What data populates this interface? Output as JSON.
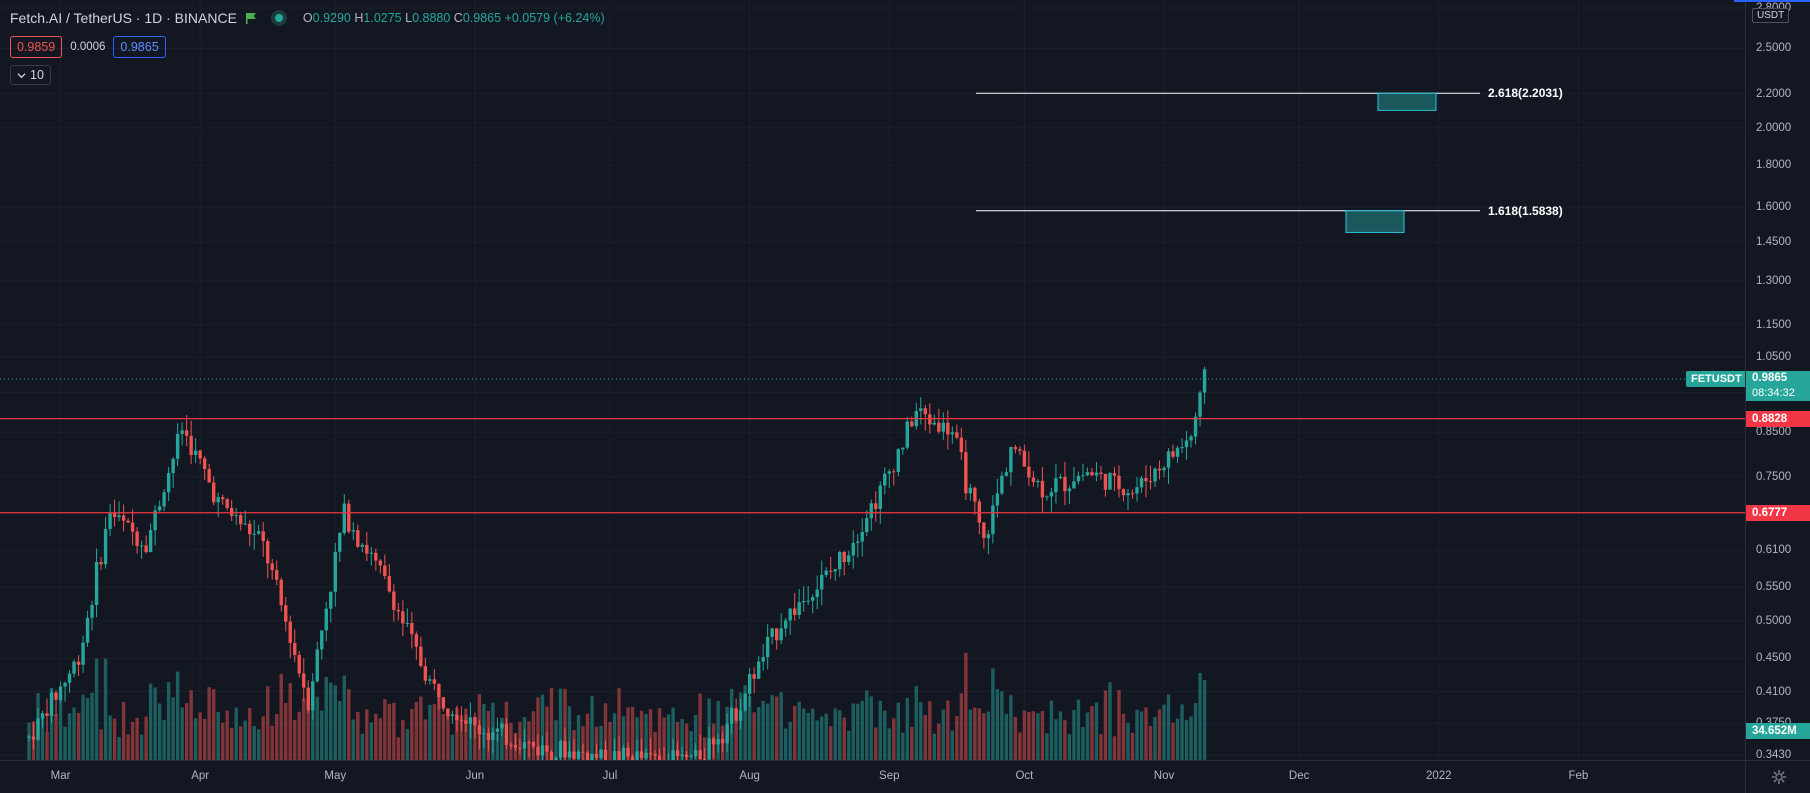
{
  "header": {
    "symbol_title": "Fetch.AI / TetherUS · 1D · BINANCE",
    "open_key": "O",
    "open": "0.9290",
    "high_key": "H",
    "high": "1.0275",
    "low_key": "L",
    "low": "0.8880",
    "close_key": "C",
    "close": "0.9865",
    "change": "+0.0579 (+6.24%)"
  },
  "trade": {
    "sell_price": "0.9859",
    "spread": "0.0006",
    "buy_price": "0.9865"
  },
  "indicator": {
    "collapse_label": "10"
  },
  "price_scale": {
    "unit": "USDT",
    "ticks": [
      "2.8000",
      "2.5000",
      "2.2000",
      "2.0000",
      "1.8000",
      "1.6000",
      "1.4500",
      "1.3000",
      "1.1500",
      "1.0500",
      "0.9500",
      "0.8500",
      "0.7500",
      "0.6777",
      "0.6100",
      "0.5500",
      "0.5000",
      "0.4500",
      "0.4100",
      "0.3750",
      "0.3430"
    ],
    "tick_values": [
      2.8,
      2.5,
      2.2,
      2.0,
      1.8,
      1.6,
      1.45,
      1.3,
      1.15,
      1.05,
      0.95,
      0.85,
      0.75,
      0.6777,
      0.61,
      0.55,
      0.5,
      0.45,
      0.41,
      0.375,
      0.343
    ]
  },
  "time_scale": {
    "labels": [
      "Mar",
      "Apr",
      "May",
      "Jun",
      "Jul",
      "Aug",
      "Sep",
      "Oct",
      "Nov",
      "Dec",
      "2022",
      "Feb"
    ]
  },
  "levels": [
    {
      "price": 0.8828,
      "label": "0.8828",
      "color": "#f23645"
    },
    {
      "price": 0.6777,
      "label": "0.6777",
      "color": "#f23645"
    }
  ],
  "current": {
    "symbol": "FETUSDT",
    "price": "0.9865",
    "price_value": 0.9865,
    "countdown": "08:34:32"
  },
  "volume": {
    "label": "34.652M"
  },
  "fib_levels": [
    {
      "label": "2.618(2.2031)",
      "price": 2.2031,
      "box_low": 2.1
    },
    {
      "label": "1.618(1.5838)",
      "price": 1.5838,
      "box_low": 1.49
    }
  ],
  "colors": {
    "up": "#26a69a",
    "down": "#ef5350",
    "background": "#131722",
    "accent": "#2962ff"
  },
  "icons": {
    "flag": "flag-icon",
    "status": "status-dot-icon",
    "chevron": "chevron-down-icon",
    "settings": "gear-icon"
  },
  "chart_data": {
    "type": "candlestick",
    "symbol": "FETUSDT",
    "interval": "1D",
    "scale": "log",
    "ylim": [
      0.343,
      2.8
    ],
    "x_range": [
      "2021-02-20",
      "2022-02-28"
    ],
    "series": [
      {
        "name": "FETUSDT",
        "approx_path": [
          [
            "2021-02-22",
            0.36
          ],
          [
            "2021-03-05",
            0.45
          ],
          [
            "2021-03-12",
            0.68
          ],
          [
            "2021-03-20",
            0.62
          ],
          [
            "2021-03-28",
            0.86
          ],
          [
            "2021-04-05",
            0.7
          ],
          [
            "2021-04-15",
            0.62
          ],
          [
            "2021-04-25",
            0.4
          ],
          [
            "2021-05-03",
            0.68
          ],
          [
            "2021-05-12",
            0.56
          ],
          [
            "2021-05-22",
            0.42
          ],
          [
            "2021-06-01",
            0.37
          ],
          [
            "2021-06-15",
            0.35
          ],
          [
            "2021-07-01",
            0.34
          ],
          [
            "2021-07-20",
            0.34
          ],
          [
            "2021-07-28",
            0.38
          ],
          [
            "2021-08-08",
            0.5
          ],
          [
            "2021-08-20",
            0.58
          ],
          [
            "2021-08-30",
            0.72
          ],
          [
            "2021-09-07",
            0.9
          ],
          [
            "2021-09-15",
            0.85
          ],
          [
            "2021-09-22",
            0.62
          ],
          [
            "2021-09-28",
            0.82
          ],
          [
            "2021-10-05",
            0.72
          ],
          [
            "2021-10-15",
            0.76
          ],
          [
            "2021-10-25",
            0.72
          ],
          [
            "2021-11-01",
            0.78
          ],
          [
            "2021-11-07",
            0.84
          ],
          [
            "2021-11-10",
            0.9865
          ]
        ]
      }
    ],
    "horizontal_lines": [
      0.8828,
      0.6777
    ],
    "fib_extensions": [
      {
        "ratio": "2.618",
        "price": 2.2031
      },
      {
        "ratio": "1.618",
        "price": 1.5838
      }
    ],
    "current_price": 0.9865,
    "volume_last": "34.652M"
  }
}
